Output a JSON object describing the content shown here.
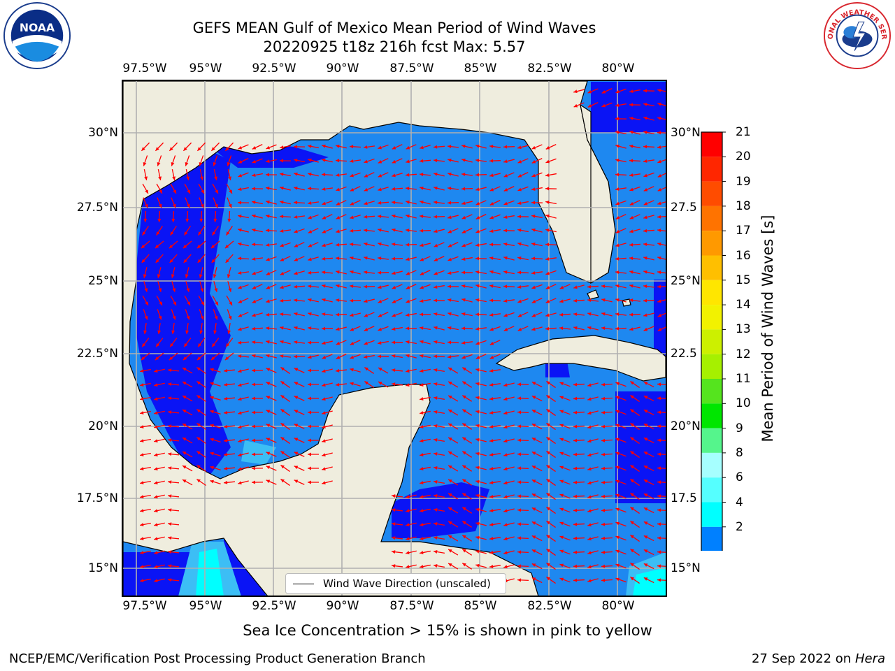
{
  "title": {
    "line1": "GEFS MEAN Gulf of Mexico Mean Period of Wind Waves",
    "line2": "20220925 t18z 216h fcst   Max: 5.57"
  },
  "map": {
    "lon_ticks": [
      "97.5°W",
      "95°W",
      "92.5°W",
      "90°W",
      "87.5°W",
      "85°W",
      "82.5°W",
      "80°W"
    ],
    "lat_ticks_left": [
      "30°N",
      "27.5°N",
      "25°N",
      "22.5°N",
      "20°N",
      "17.5°N",
      "15°N"
    ],
    "lat_ticks_right": [
      "30°N",
      "27.5",
      "25°N",
      "22.5",
      "20°N",
      "17.5",
      "15°N"
    ],
    "legend_label": "Wind Wave Direction (unscaled)",
    "colors": {
      "land": "#efedde",
      "sea_low": "#1e88f0",
      "sea_deep": "#0a14f5",
      "sea_mid": "#3cbef5",
      "sea_cyan": "#00ffff",
      "arrows": "#ff0000",
      "grid": "#b0b0b0"
    }
  },
  "colorbar": {
    "title": "Mean Period of Wind Waves [s]",
    "tick_labels": [
      "21",
      "20",
      "19",
      "18",
      "17",
      "16",
      "15",
      "14",
      "13",
      "12",
      "11",
      "10",
      "9",
      "8",
      "6",
      "4",
      "2"
    ],
    "colors_top_to_bottom": [
      "#ff0000",
      "#ff2600",
      "#ff4c00",
      "#ff7300",
      "#ff9900",
      "#ffbf00",
      "#ffe600",
      "#f2f200",
      "#ccf000",
      "#a6f000",
      "#55e41e",
      "#00e600",
      "#55f58c",
      "#a6ffff",
      "#55ffff",
      "#00ffff",
      "#0080ff"
    ],
    "extend_color": "#0000ff"
  },
  "logos": {
    "noaa_text": "NOAA",
    "nws_text": "NATIONAL WEATHER SERVICE"
  },
  "subnote": "Sea Ice Concentration > 15% is shown in pink to yellow",
  "footer": {
    "left": "NCEP/EMC/Verification Post Processing Product Generation Branch",
    "right_date": "27 Sep 2022 on",
    "right_host": "Hera"
  }
}
